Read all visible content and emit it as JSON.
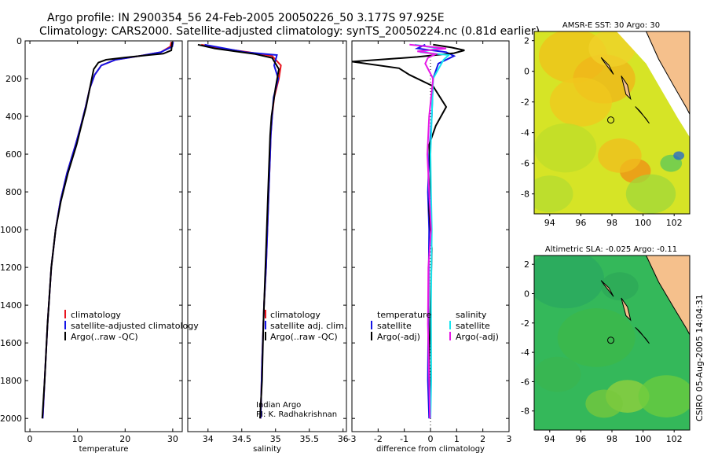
{
  "header": {
    "line1": "Argo profile: IN 2900354_56 24-Feb-2005 20050226_50 3.177S 97.925E",
    "line2": "Climatology: CARS2000. Satellite-adjusted climatology: synTS_20050224.nc (0.81d earlier)"
  },
  "side_label": "CSIRO 05-Aug-2005 14:04:31",
  "colors": {
    "red": "#e8141e",
    "blue": "#1414e6",
    "black": "#000000",
    "cyan": "#19e6f0",
    "magenta": "#e619e6",
    "land": "#f5c08c",
    "sst_bg": "#e6e619",
    "sla_bg": "#3cc33c"
  },
  "chart_data": [
    {
      "id": "temperature",
      "type": "line",
      "xlabel": "temperature",
      "ylabel": "",
      "xlim": [
        -1,
        32
      ],
      "ylim": [
        2070,
        0
      ],
      "xticks": [
        "0",
        "10",
        "20",
        "30"
      ],
      "xtick_values": [
        0,
        10,
        20,
        30
      ],
      "yticks": [
        "0",
        "200",
        "400",
        "600",
        "800",
        "1000",
        "1200",
        "1400",
        "1600",
        "1800",
        "2000"
      ],
      "ytick_values": [
        0,
        200,
        400,
        600,
        800,
        1000,
        1200,
        1400,
        1600,
        1800,
        2000
      ],
      "legend": [
        "climatology",
        "satellite-adjusted climatology",
        "Argo(..raw -QC)"
      ],
      "series": [
        {
          "name": "climatology",
          "color": "red",
          "x": [
            29.7,
            29.5,
            27.5,
            23,
            18,
            15,
            13.6,
            12.6,
            11.7,
            10.7,
            9.6,
            7.8,
            6.4,
            5.4,
            4.5,
            3.7,
            3.1,
            2.7
          ],
          "y": [
            5,
            30,
            60,
            80,
            100,
            130,
            180,
            250,
            350,
            450,
            550,
            700,
            850,
            1000,
            1200,
            1500,
            1800,
            2000
          ]
        },
        {
          "name": "satellite-adjusted climatology",
          "color": "blue",
          "x": [
            30.1,
            29.9,
            27.5,
            23,
            18,
            15,
            13.6,
            12.6,
            11.7,
            10.7,
            9.6,
            7.8,
            6.4,
            5.4,
            4.5,
            3.7,
            3.1,
            2.7
          ],
          "y": [
            5,
            30,
            60,
            80,
            100,
            130,
            180,
            250,
            350,
            450,
            550,
            700,
            850,
            1000,
            1200,
            1500,
            1800,
            2000
          ]
        },
        {
          "name": "Argo(..raw -QC)",
          "color": "black",
          "x": [
            29.9,
            29.7,
            28,
            25,
            20,
            16,
            14.4,
            13.4,
            12.6,
            11.8,
            10.8,
            9.8,
            8,
            6.5,
            5.4,
            4.5,
            3.7,
            3.1,
            2.6
          ],
          "y": [
            5,
            50,
            68,
            75,
            88,
            100,
            115,
            150,
            250,
            350,
            450,
            550,
            700,
            850,
            1000,
            1200,
            1500,
            1800,
            2000
          ]
        }
      ]
    },
    {
      "id": "salinity",
      "type": "line",
      "xlabel": "salinity",
      "ylabel": "",
      "xlim": [
        33.7,
        36.05
      ],
      "ylim": [
        2070,
        0
      ],
      "xticks": [
        "34",
        "34.5",
        "35",
        "35.5",
        "36"
      ],
      "xtick_values": [
        34,
        34.5,
        35,
        35.5,
        36
      ],
      "legend": [
        "climatology",
        "satellite adj. clim.",
        "Argo(..raw -QC)"
      ],
      "annotation": [
        "Indian Argo",
        "PI: K. Radhakrishnan"
      ],
      "series": [
        {
          "name": "climatology",
          "color": "red",
          "x": [
            33.9,
            34.2,
            34.6,
            34.95,
            35.08,
            35.05,
            34.98,
            34.95,
            34.93,
            34.92,
            34.9,
            34.88,
            34.86,
            34.83,
            34.8,
            34.78
          ],
          "y": [
            20,
            40,
            60,
            80,
            130,
            200,
            300,
            400,
            500,
            600,
            800,
            1000,
            1200,
            1400,
            1700,
            2000
          ]
        },
        {
          "name": "satellite adj. clim.",
          "color": "blue",
          "x": [
            33.95,
            34.25,
            34.55,
            35.02,
            34.98,
            35.04,
            34.97,
            34.95,
            34.93,
            34.92,
            34.9,
            34.88,
            34.86,
            34.83,
            34.8,
            34.78
          ],
          "y": [
            20,
            40,
            60,
            75,
            130,
            200,
            300,
            400,
            500,
            600,
            800,
            1000,
            1200,
            1400,
            1700,
            2000
          ]
        },
        {
          "name": "Argo(..raw -QC)",
          "color": "black",
          "x": [
            33.85,
            34.1,
            34.4,
            34.7,
            34.95,
            35.05,
            35.0,
            34.94,
            34.92,
            34.9,
            34.88,
            34.86,
            34.84,
            34.82,
            34.8,
            34.77
          ],
          "y": [
            20,
            40,
            55,
            70,
            90,
            150,
            250,
            400,
            500,
            700,
            900,
            1100,
            1300,
            1500,
            1800,
            2000
          ]
        }
      ]
    },
    {
      "id": "difference",
      "type": "line",
      "xlabel": "difference from climatology",
      "ylabel": "",
      "xlim": [
        -3,
        3
      ],
      "ylim": [
        2070,
        0
      ],
      "xticks": [
        "-3",
        "-2",
        "-1",
        "0",
        "1",
        "2",
        "3"
      ],
      "xtick_values": [
        -3,
        -2,
        -1,
        0,
        1,
        2,
        3
      ],
      "legend_left_title": "temperature",
      "legend_left": [
        "satellite",
        "Argo(-adj)"
      ],
      "legend_right_title": "salinity",
      "legend_right": [
        "satellite",
        "Argo(-adj)"
      ],
      "series": [
        {
          "name": "temperature satellite",
          "color": "blue",
          "x": [
            -0.2,
            -0.5,
            0.6,
            0.9,
            0.3,
            0.1,
            0.05,
            -0.05,
            -0.1,
            -0.05,
            -0.08,
            -0.1,
            -0.05
          ],
          "y": [
            20,
            40,
            60,
            80,
            120,
            200,
            400,
            600,
            800,
            1000,
            1400,
            1800,
            2000
          ]
        },
        {
          "name": "temperature Argo(-adj)",
          "color": "black",
          "x": [
            0.1,
            0.8,
            1.3,
            0.9,
            -0.5,
            -3.0,
            -1.2,
            -0.8,
            0.1,
            0.6,
            0.2,
            -0.05,
            0.0,
            -0.05,
            0.05,
            0.0,
            -0.05,
            0.0
          ],
          "y": [
            20,
            35,
            50,
            65,
            85,
            110,
            145,
            180,
            240,
            350,
            450,
            550,
            700,
            900,
            1100,
            1400,
            1700,
            2000
          ]
        },
        {
          "name": "salinity satellite",
          "color": "cyan",
          "x": [
            -0.6,
            0.3,
            -0.4,
            0.7,
            0.5,
            0.1,
            0.05,
            0.0,
            0.02,
            0.05,
            0.02,
            0.03,
            0.0
          ],
          "y": [
            20,
            40,
            60,
            75,
            100,
            200,
            400,
            600,
            800,
            1000,
            1400,
            1800,
            2000
          ]
        },
        {
          "name": "salinity Argo(-adj)",
          "color": "magenta",
          "x": [
            -0.8,
            0.6,
            -0.5,
            0.2,
            -0.1,
            -0.2,
            0.1,
            -0.05,
            -0.12,
            -0.05,
            0.02,
            -0.08,
            -0.1,
            -0.05,
            -0.02
          ],
          "y": [
            20,
            40,
            55,
            70,
            90,
            120,
            200,
            400,
            600,
            800,
            1000,
            1200,
            1500,
            1800,
            2000
          ]
        }
      ]
    },
    {
      "id": "sst_map",
      "type": "heatmap",
      "title": "AMSR-E SST: 30 Argo: 30",
      "xlim": [
        93,
        103
      ],
      "ylim": [
        -9.3,
        2.6
      ],
      "xticks": [
        "94",
        "96",
        "98",
        "100",
        "102"
      ],
      "xtick_values": [
        94,
        96,
        98,
        100,
        102
      ],
      "yticks": [
        "2",
        "0",
        "-2",
        "-4",
        "-6",
        "-8"
      ],
      "ytick_values": [
        2,
        0,
        -2,
        -4,
        -6,
        -8
      ],
      "marker": {
        "lon": 97.925,
        "lat": -3.177
      }
    },
    {
      "id": "sla_map",
      "type": "heatmap",
      "title": "Altimetric SLA: -0.025 Argo: -0.11",
      "xlim": [
        93,
        103
      ],
      "ylim": [
        -9.3,
        2.6
      ],
      "xticks": [
        "94",
        "96",
        "98",
        "100",
        "102"
      ],
      "xtick_values": [
        94,
        96,
        98,
        100,
        102
      ],
      "yticks": [
        "2",
        "0",
        "-2",
        "-4",
        "-6",
        "-8"
      ],
      "ytick_values": [
        2,
        0,
        -2,
        -4,
        -6,
        -8
      ],
      "marker": {
        "lon": 97.925,
        "lat": -3.177
      }
    }
  ]
}
